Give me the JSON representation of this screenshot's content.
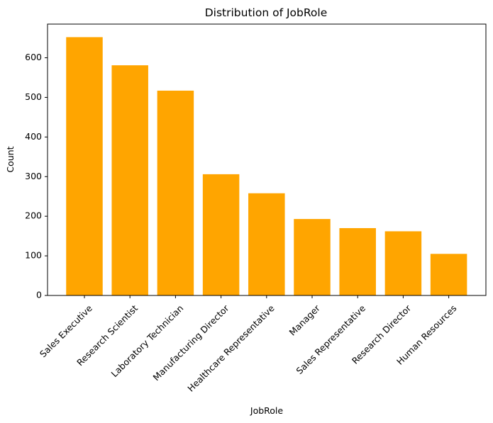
{
  "chart_data": {
    "type": "bar",
    "title": "Distribution of JobRole",
    "xlabel": "JobRole",
    "ylabel": "Count",
    "categories": [
      "Sales Executive",
      "Research Scientist",
      "Laboratory Technician",
      "Manufacturing Director",
      "Healthcare Representative",
      "Manager",
      "Sales Representative",
      "Research Director",
      "Human Resources"
    ],
    "values": [
      652,
      581,
      517,
      306,
      258,
      193,
      170,
      162,
      105
    ],
    "ylim": [
      0,
      685
    ],
    "yticks": [
      0,
      100,
      200,
      300,
      400,
      500,
      600
    ],
    "bar_color": "#ffa500",
    "grid": false,
    "legend": "none"
  }
}
